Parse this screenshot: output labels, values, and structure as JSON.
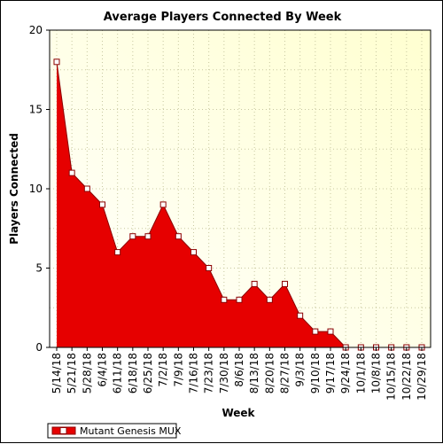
{
  "chart_data": {
    "type": "area",
    "title": "Average Players Connected By Week",
    "xlabel": "Week",
    "ylabel": "Players Connected",
    "ylim": [
      0,
      20
    ],
    "yticks": [
      0,
      5,
      10,
      15,
      20
    ],
    "grid": true,
    "legend_position": "bottom-left",
    "categories": [
      "5/14/18",
      "5/21/18",
      "5/28/18",
      "6/4/18",
      "6/11/18",
      "6/18/18",
      "6/25/18",
      "7/2/18",
      "7/9/18",
      "7/16/18",
      "7/23/18",
      "7/30/18",
      "8/6/18",
      "8/13/18",
      "8/20/18",
      "8/27/18",
      "9/3/18",
      "9/10/18",
      "9/17/18",
      "9/24/18",
      "10/1/18",
      "10/8/18",
      "10/15/18",
      "10/22/18",
      "10/29/18"
    ],
    "series": [
      {
        "name": "Mutant Genesis MUX",
        "color": "#e60000",
        "values": [
          18,
          11,
          10,
          9,
          6,
          7,
          7,
          9,
          7,
          6,
          5,
          3,
          3,
          4,
          3,
          4,
          2,
          1,
          1,
          0,
          0,
          0,
          0,
          0,
          0
        ]
      }
    ],
    "colors": {
      "plot_bg_top_right": "#ffffd0",
      "plot_bg_bottom_left": "#ffffff",
      "fill": "#e60000",
      "line": "#8b0000",
      "marker_fill": "#ffffff",
      "marker_stroke": "#8b0000"
    }
  }
}
